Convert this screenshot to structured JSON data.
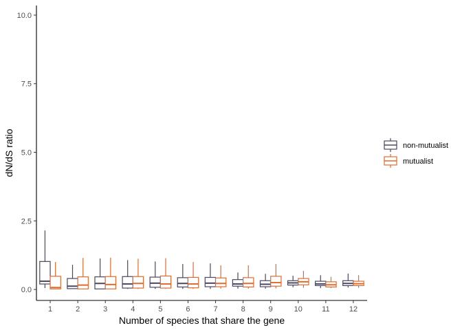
{
  "chart_data": {
    "type": "boxplot",
    "title": "",
    "xlabel": "Number of species that share the gene",
    "ylabel": "dN/dS ratio",
    "ylim": [
      -0.4,
      10.35
    ],
    "yticks": [
      0.0,
      2.5,
      5.0,
      7.5,
      10.0
    ],
    "ytick_labels": [
      "0.0",
      "2.5",
      "5.0",
      "7.5",
      "10.0"
    ],
    "categories": [
      "1",
      "2",
      "3",
      "4",
      "5",
      "6",
      "7",
      "8",
      "9",
      "10",
      "11",
      "12"
    ],
    "grid": false,
    "legend_position": "right",
    "series": [
      {
        "name": "non-mutualist",
        "color": "#4a4560",
        "boxes": [
          {
            "min": 0.05,
            "q1": 0.2,
            "median": 0.3,
            "q3": 1.02,
            "max": 2.15
          },
          {
            "min": 0.02,
            "q1": 0.03,
            "median": 0.12,
            "q3": 0.4,
            "max": 0.9
          },
          {
            "min": 0.02,
            "q1": 0.02,
            "median": 0.22,
            "q3": 0.46,
            "max": 1.13
          },
          {
            "min": 0.02,
            "q1": 0.05,
            "median": 0.2,
            "q3": 0.47,
            "max": 1.07
          },
          {
            "min": 0.02,
            "q1": 0.08,
            "median": 0.23,
            "q3": 0.45,
            "max": 1.02
          },
          {
            "min": 0.02,
            "q1": 0.09,
            "median": 0.22,
            "q3": 0.43,
            "max": 0.93
          },
          {
            "min": 0.02,
            "q1": 0.1,
            "median": 0.23,
            "q3": 0.44,
            "max": 0.95
          },
          {
            "min": 0.03,
            "q1": 0.12,
            "median": 0.2,
            "q3": 0.36,
            "max": 0.62
          },
          {
            "min": 0.03,
            "q1": 0.1,
            "median": 0.19,
            "q3": 0.32,
            "max": 0.57
          },
          {
            "min": 0.08,
            "q1": 0.16,
            "median": 0.24,
            "q3": 0.32,
            "max": 0.5
          },
          {
            "min": 0.05,
            "q1": 0.14,
            "median": 0.2,
            "q3": 0.3,
            "max": 0.52
          },
          {
            "min": 0.07,
            "q1": 0.14,
            "median": 0.22,
            "q3": 0.32,
            "max": 0.58
          }
        ]
      },
      {
        "name": "mutualist",
        "color": "#e26a2c",
        "boxes": [
          {
            "min": 0.01,
            "q1": 0.02,
            "median": 0.07,
            "q3": 0.48,
            "max": 1.0
          },
          {
            "min": 0.01,
            "q1": 0.02,
            "median": 0.16,
            "q3": 0.46,
            "max": 1.15
          },
          {
            "min": 0.01,
            "q1": 0.02,
            "median": 0.18,
            "q3": 0.47,
            "max": 1.16
          },
          {
            "min": 0.02,
            "q1": 0.05,
            "median": 0.22,
            "q3": 0.47,
            "max": 1.12
          },
          {
            "min": 0.02,
            "q1": 0.05,
            "median": 0.2,
            "q3": 0.49,
            "max": 1.14
          },
          {
            "min": 0.02,
            "q1": 0.06,
            "median": 0.2,
            "q3": 0.44,
            "max": 1.0
          },
          {
            "min": 0.03,
            "q1": 0.1,
            "median": 0.22,
            "q3": 0.42,
            "max": 0.88
          },
          {
            "min": 0.03,
            "q1": 0.09,
            "median": 0.22,
            "q3": 0.43,
            "max": 0.88
          },
          {
            "min": 0.04,
            "q1": 0.12,
            "median": 0.25,
            "q3": 0.48,
            "max": 0.93
          },
          {
            "min": 0.06,
            "q1": 0.17,
            "median": 0.28,
            "q3": 0.4,
            "max": 0.68
          },
          {
            "min": 0.05,
            "q1": 0.09,
            "median": 0.17,
            "q3": 0.28,
            "max": 0.46
          },
          {
            "min": 0.06,
            "q1": 0.14,
            "median": 0.21,
            "q3": 0.3,
            "max": 0.52
          }
        ]
      }
    ]
  }
}
